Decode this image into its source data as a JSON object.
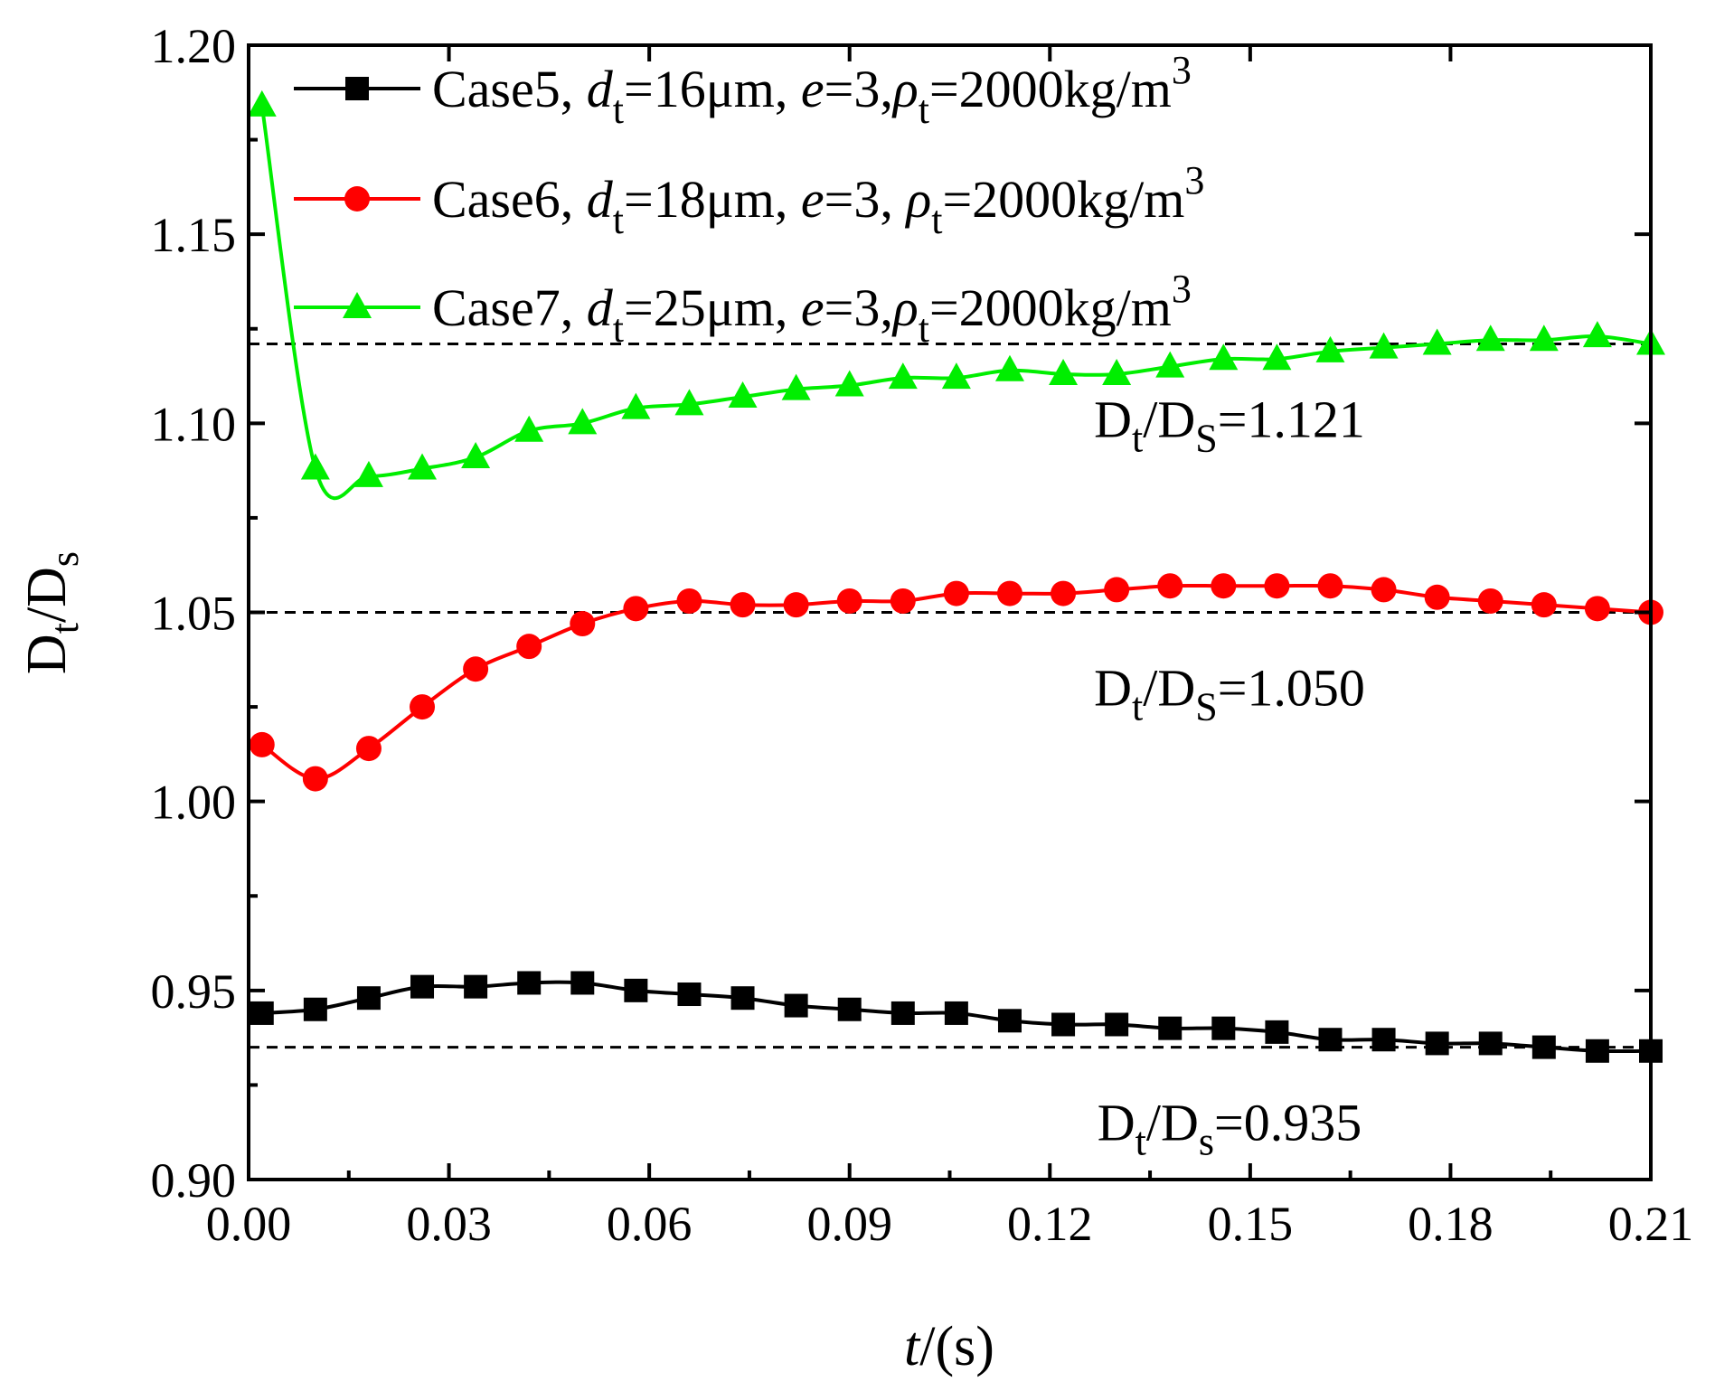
{
  "chart_data": {
    "type": "line",
    "xlabel": {
      "var": "t",
      "unit": "/(s)"
    },
    "ylabel": {
      "main": "D",
      "sub": "t",
      "sep": "/D",
      "sub2": "s"
    },
    "xlim": [
      0,
      0.21
    ],
    "ylim": [
      0.9,
      1.2
    ],
    "x_ticks": [
      "0.00",
      "0.03",
      "0.06",
      "0.09",
      "0.12",
      "0.15",
      "0.18",
      "0.21"
    ],
    "y_ticks": [
      "0.90",
      "0.95",
      "1.00",
      "1.05",
      "1.10",
      "1.15",
      "1.20"
    ],
    "series": [
      {
        "name": "Case5",
        "color": "#000000",
        "marker": "square",
        "legend": {
          "case": "Case5, ",
          "d": "d",
          "dsub": "t",
          "dval": "=16μm, ",
          "e": "e",
          "eval": "=3,",
          "rho": "ρ",
          "rhosub": "t",
          "rhoval": "=2000kg/m",
          "sup": "3"
        },
        "x": [
          0.002,
          0.01,
          0.018,
          0.026,
          0.034,
          0.042,
          0.05,
          0.058,
          0.066,
          0.074,
          0.082,
          0.09,
          0.098,
          0.106,
          0.114,
          0.122,
          0.13,
          0.138,
          0.146,
          0.154,
          0.162,
          0.17,
          0.178,
          0.186,
          0.194,
          0.202,
          0.21
        ],
        "y": [
          0.944,
          0.945,
          0.948,
          0.951,
          0.951,
          0.952,
          0.952,
          0.95,
          0.949,
          0.948,
          0.946,
          0.945,
          0.944,
          0.944,
          0.942,
          0.941,
          0.941,
          0.94,
          0.94,
          0.939,
          0.937,
          0.937,
          0.936,
          0.936,
          0.935,
          0.934,
          0.934
        ]
      },
      {
        "name": "Case6",
        "color": "#ff0000",
        "marker": "circle",
        "legend": {
          "case": "Case6, ",
          "d": "d",
          "dsub": "t",
          "dval": "=18μm, ",
          "e": "e",
          "eval": "=3, ",
          "rho": "ρ",
          "rhosub": "t",
          "rhoval": "=2000kg/m",
          "sup": "3"
        },
        "x": [
          0.002,
          0.01,
          0.018,
          0.026,
          0.034,
          0.042,
          0.05,
          0.058,
          0.066,
          0.074,
          0.082,
          0.09,
          0.098,
          0.106,
          0.114,
          0.122,
          0.13,
          0.138,
          0.146,
          0.154,
          0.162,
          0.17,
          0.178,
          0.186,
          0.194,
          0.202,
          0.21
        ],
        "y": [
          1.015,
          1.006,
          1.014,
          1.025,
          1.035,
          1.041,
          1.047,
          1.051,
          1.053,
          1.052,
          1.052,
          1.053,
          1.053,
          1.055,
          1.055,
          1.055,
          1.056,
          1.057,
          1.057,
          1.057,
          1.057,
          1.056,
          1.054,
          1.053,
          1.052,
          1.051,
          1.05
        ]
      },
      {
        "name": "Case7",
        "color": "#00ee00",
        "marker": "triangle",
        "legend": {
          "case": "Case7, ",
          "d": "d",
          "dsub": "t",
          "dval": "=25μm, ",
          "e": "e",
          "eval": "=3,",
          "rho": "ρ",
          "rhosub": "t",
          "rhoval": "=2000kg/m",
          "sup": "3"
        },
        "x": [
          0.002,
          0.01,
          0.018,
          0.026,
          0.034,
          0.042,
          0.05,
          0.058,
          0.066,
          0.074,
          0.082,
          0.09,
          0.098,
          0.106,
          0.114,
          0.122,
          0.13,
          0.138,
          0.146,
          0.154,
          0.162,
          0.17,
          0.178,
          0.186,
          0.194,
          0.202,
          0.21
        ],
        "y": [
          1.184,
          1.088,
          1.086,
          1.088,
          1.091,
          1.098,
          1.1,
          1.104,
          1.105,
          1.107,
          1.109,
          1.11,
          1.112,
          1.112,
          1.114,
          1.113,
          1.113,
          1.115,
          1.117,
          1.117,
          1.119,
          1.12,
          1.121,
          1.122,
          1.122,
          1.123,
          1.121
        ]
      }
    ],
    "reference_lines": [
      {
        "y": 1.121,
        "label_main": "D",
        "label_sub": "t",
        "label_sep": "/D",
        "label_sub2": "S",
        "label_val": "=1.121"
      },
      {
        "y": 1.05,
        "label_main": "D",
        "label_sub": "t",
        "label_sep": "/D",
        "label_sub2": "S",
        "label_val": "=1.050"
      },
      {
        "y": 0.935,
        "label_main": "D",
        "label_sub": "t",
        "label_sep": "/D",
        "label_sub2": "s",
        "label_val": "=0.935"
      }
    ],
    "legend_position": "top-left"
  }
}
